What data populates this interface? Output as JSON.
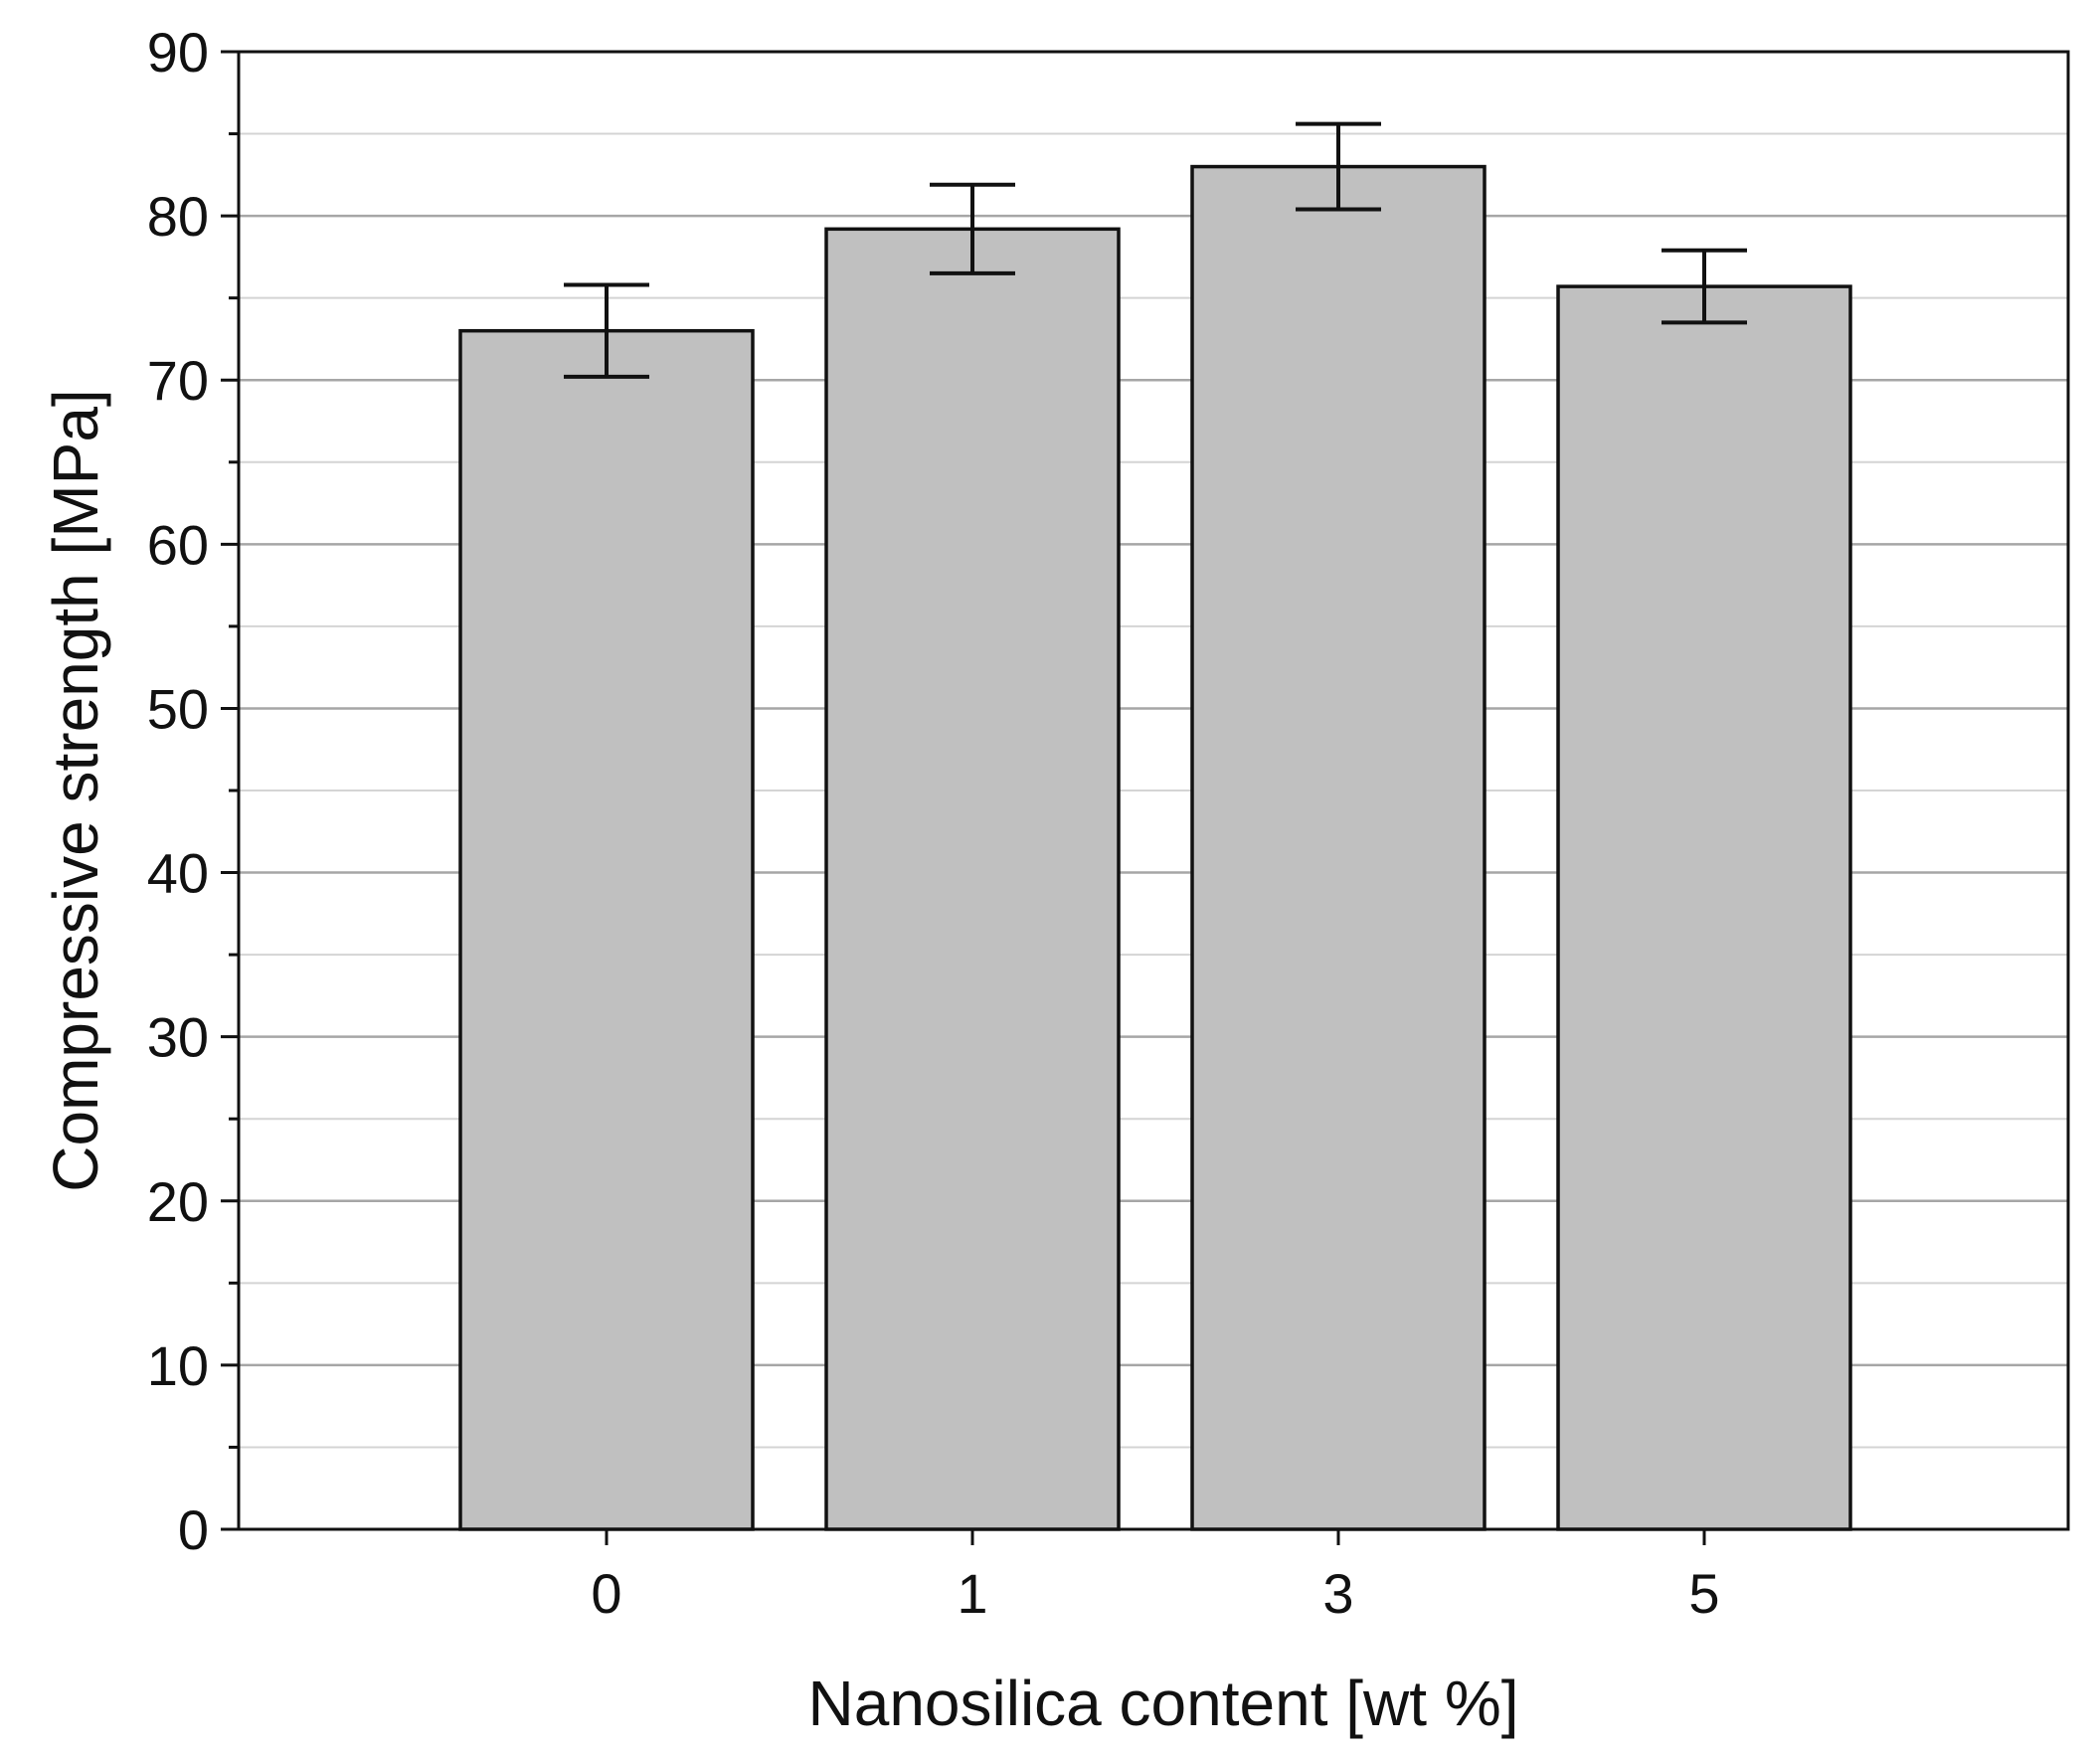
{
  "chart_data": {
    "type": "bar",
    "title": "",
    "xlabel": "Nanosilica content [wt %]",
    "ylabel": "Compressive strength [MPa]",
    "categories": [
      "0",
      "1",
      "3",
      "5"
    ],
    "values": [
      73.0,
      79.2,
      83.0,
      75.7
    ],
    "errors": [
      2.8,
      2.7,
      2.6,
      2.2
    ],
    "ylim": [
      0,
      90
    ],
    "yticks": [
      0,
      10,
      20,
      30,
      40,
      50,
      60,
      70,
      80,
      90
    ],
    "y_minor_step": 5,
    "grid": true,
    "legend": "none",
    "colors": {
      "bar_fill": "#c0c0c0",
      "bar_stroke": "#111111",
      "grid_major": "#a6a6a6",
      "grid_minor": "#d4d4d4",
      "axis": "#111111",
      "error_bar": "#111111"
    }
  }
}
